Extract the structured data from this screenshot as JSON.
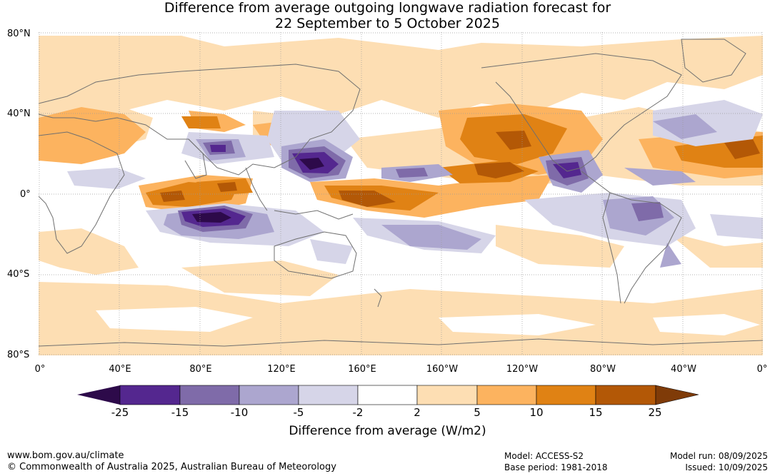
{
  "title": {
    "line1": "Difference from average outgoing longwave radiation forecast for",
    "line2": "22 September to 5 October 2025"
  },
  "lat_labels": [
    "80°N",
    "40°N",
    "0°",
    "40°S",
    "80°S"
  ],
  "lon_labels": [
    "0°",
    "40°E",
    "80°E",
    "120°E",
    "160°E",
    "160°W",
    "120°W",
    "80°W",
    "40°W",
    "0°"
  ],
  "colorbar": {
    "label": "Difference from average (W/m2)",
    "ticks": [
      "-25",
      "-15",
      "-10",
      "-5",
      "-2",
      "2",
      "5",
      "10",
      "15",
      "25"
    ],
    "colors": {
      "lt_-25": "#2d0a4a",
      "-25_-15": "#54278f",
      "-15_-10": "#7f6ba9",
      "-10_-5": "#aca6cf",
      "-5_-2": "#d6d5e8",
      "-2_2": "#ffffff",
      "2_5": "#fddeb3",
      "5_10": "#fcb35f",
      "10_15": "#e08214",
      "15_25": "#b35806",
      "gt_25": "#7f3b08"
    }
  },
  "footer": {
    "website": "www.bom.gov.au/climate",
    "copyright": "© Commonwealth of Australia 2025, Australian Bureau of Meteorology",
    "model": "Model: ACCESS-S2",
    "base_period": "Base period: 1981-2018",
    "model_run": "Model run: 08/09/2025",
    "issued": "Issued: 10/09/2025"
  }
}
